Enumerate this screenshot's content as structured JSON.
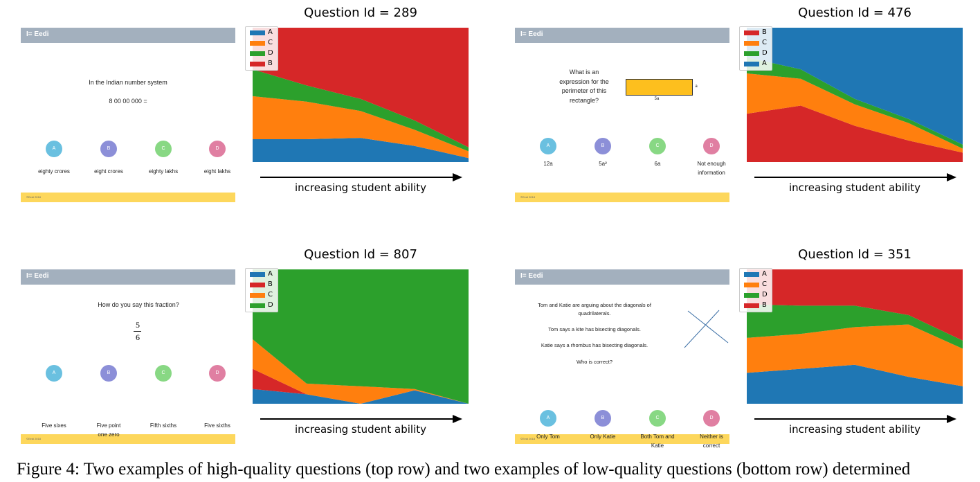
{
  "caption": "Figure 4: Two examples of high-quality questions (top row) and two examples of low-quality questions (bottom row) determined",
  "colors": {
    "A": "#1f77b4",
    "B": "#d62728",
    "C": "#ff7f0e",
    "D": "#2ca02c"
  },
  "common": {
    "brand": "I= Eedi",
    "footer": "©Eedi 2018",
    "ability": "increasing student ability"
  },
  "panels": [
    {
      "title": "Question Id = 289",
      "question": [
        "In the Indian number system",
        "8 00 00 000 ="
      ],
      "options": [
        {
          "letter": "A",
          "label": "eighty crores",
          "color": "#6ac0e0"
        },
        {
          "letter": "B",
          "label": "eight crores",
          "color": "#8c8fd8"
        },
        {
          "letter": "C",
          "label": "eighty lakhs",
          "color": "#88d884"
        },
        {
          "letter": "D",
          "label": "eight lakhs",
          "color": "#e07fa2"
        }
      ]
    },
    {
      "title": "Question Id = 476",
      "question": [
        "What is an",
        "expression for the",
        "perimeter of this",
        "rectangle?"
      ],
      "rect_labels": [
        "a",
        "5a"
      ],
      "options": [
        {
          "letter": "A",
          "label": "12a",
          "color": "#6ac0e0"
        },
        {
          "letter": "B",
          "label": "5a²",
          "color": "#8c8fd8"
        },
        {
          "letter": "C",
          "label": "6a",
          "color": "#88d884"
        },
        {
          "letter": "D",
          "label": "Not enough information",
          "color": "#e07fa2"
        }
      ]
    },
    {
      "title": "Question Id = 807",
      "question": [
        "How do you say this fraction?"
      ],
      "fraction": [
        "5",
        "6"
      ],
      "options": [
        {
          "letter": "A",
          "label": "Five sixes",
          "color": "#6ac0e0"
        },
        {
          "letter": "B",
          "label": "Five point one zero",
          "color": "#8c8fd8"
        },
        {
          "letter": "C",
          "label": "Fifth sixths",
          "color": "#88d884"
        },
        {
          "letter": "D",
          "label": "Five sixths",
          "color": "#e07fa2"
        }
      ]
    },
    {
      "title": "Question Id = 351",
      "question": [
        "Tom and Katie are arguing about the diagonals of",
        "quadrilaterals.",
        "Tom says a kite has bisecting diagonals.",
        "Katie says a rhombus has bisecting diagonals.",
        "Who is correct?"
      ],
      "options": [
        {
          "letter": "A",
          "label": "Only Tom",
          "color": "#6ac0e0"
        },
        {
          "letter": "B",
          "label": "Only Katie",
          "color": "#8c8fd8"
        },
        {
          "letter": "C",
          "label": "Both Tom and Katie",
          "color": "#88d884"
        },
        {
          "letter": "D",
          "label": "Neither is correct",
          "color": "#e07fa2"
        }
      ]
    }
  ],
  "chart_data": [
    {
      "type": "area",
      "title": "Question Id = 289",
      "x": [
        0,
        1,
        2,
        3,
        4
      ],
      "ylim": [
        0,
        1
      ],
      "legend": [
        "A",
        "C",
        "D",
        "B"
      ],
      "series": [
        {
          "name": "A",
          "values": [
            0.17,
            0.17,
            0.18,
            0.12,
            0.03
          ]
        },
        {
          "name": "C",
          "values": [
            0.32,
            0.28,
            0.2,
            0.12,
            0.05
          ]
        },
        {
          "name": "D",
          "values": [
            0.2,
            0.12,
            0.09,
            0.07,
            0.03
          ]
        },
        {
          "name": "B",
          "values": [
            0.31,
            0.43,
            0.53,
            0.69,
            0.89
          ]
        }
      ]
    },
    {
      "type": "area",
      "title": "Question Id = 476",
      "x": [
        0,
        1,
        2,
        3,
        4
      ],
      "ylim": [
        0,
        1
      ],
      "legend": [
        "B",
        "C",
        "D",
        "A"
      ],
      "series": [
        {
          "name": "B",
          "values": [
            0.36,
            0.42,
            0.27,
            0.16,
            0.07
          ]
        },
        {
          "name": "C",
          "values": [
            0.3,
            0.2,
            0.16,
            0.13,
            0.03
          ]
        },
        {
          "name": "D",
          "values": [
            0.12,
            0.07,
            0.04,
            0.03,
            0.03
          ]
        },
        {
          "name": "A",
          "values": [
            0.22,
            0.31,
            0.53,
            0.68,
            0.87
          ]
        }
      ]
    },
    {
      "type": "area",
      "title": "Question Id = 807",
      "x": [
        0,
        1,
        2,
        3,
        4
      ],
      "ylim": [
        0,
        1
      ],
      "legend": [
        "A",
        "B",
        "C",
        "D"
      ],
      "series": [
        {
          "name": "A",
          "values": [
            0.11,
            0.07,
            0.0,
            0.1,
            0.0
          ]
        },
        {
          "name": "B",
          "values": [
            0.15,
            0.0,
            0.0,
            0.0,
            0.0
          ]
        },
        {
          "name": "C",
          "values": [
            0.22,
            0.08,
            0.13,
            0.01,
            0.0
          ]
        },
        {
          "name": "D",
          "values": [
            0.52,
            0.85,
            0.87,
            0.89,
            1.0
          ]
        }
      ]
    },
    {
      "type": "area",
      "title": "Question Id = 351",
      "x": [
        0,
        1,
        2,
        3,
        4
      ],
      "ylim": [
        0,
        1
      ],
      "legend": [
        "A",
        "C",
        "D",
        "B"
      ],
      "series": [
        {
          "name": "A",
          "values": [
            0.23,
            0.26,
            0.29,
            0.2,
            0.13
          ]
        },
        {
          "name": "C",
          "values": [
            0.26,
            0.26,
            0.28,
            0.39,
            0.28
          ]
        },
        {
          "name": "D",
          "values": [
            0.25,
            0.21,
            0.16,
            0.07,
            0.06
          ]
        },
        {
          "name": "B",
          "values": [
            0.26,
            0.27,
            0.27,
            0.34,
            0.53
          ]
        }
      ]
    }
  ]
}
